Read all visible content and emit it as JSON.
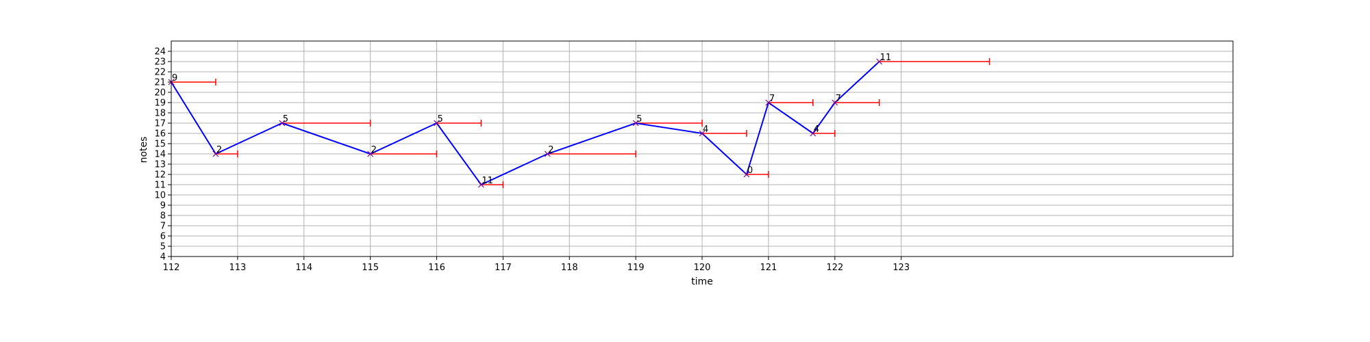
{
  "chart_data": {
    "type": "line",
    "title": "",
    "xlabel": "time",
    "ylabel": "notes",
    "xlim": [
      112,
      128
    ],
    "ylim": [
      4,
      25
    ],
    "x_ticks": [
      112,
      113,
      114,
      115,
      116,
      117,
      118,
      119,
      120,
      121,
      122,
      123
    ],
    "y_ticks": [
      4,
      5,
      6,
      7,
      8,
      9,
      10,
      11,
      12,
      13,
      14,
      15,
      16,
      17,
      18,
      19,
      20,
      21,
      22,
      23,
      24
    ],
    "grid": true,
    "colors": {
      "line": "#0000ff",
      "marker": "#800080",
      "duration": "#ff0000",
      "grid": "#b0b0b0"
    },
    "points": [
      {
        "x": 112.0,
        "y": 21,
        "label": "9",
        "end": 112.67
      },
      {
        "x": 112.67,
        "y": 14,
        "label": "2",
        "end": 113.0
      },
      {
        "x": 113.67,
        "y": 17,
        "label": "5",
        "end": 115.0
      },
      {
        "x": 115.0,
        "y": 14,
        "label": "2",
        "end": 116.0
      },
      {
        "x": 116.0,
        "y": 17,
        "label": "5",
        "end": 116.67
      },
      {
        "x": 116.67,
        "y": 11,
        "label": "11",
        "end": 117.0
      },
      {
        "x": 117.67,
        "y": 14,
        "label": "2",
        "end": 119.0
      },
      {
        "x": 119.0,
        "y": 17,
        "label": "5",
        "end": 120.0
      },
      {
        "x": 120.0,
        "y": 16,
        "label": "4",
        "end": 120.67
      },
      {
        "x": 120.67,
        "y": 12,
        "label": "0",
        "end": 121.0
      },
      {
        "x": 121.0,
        "y": 19,
        "label": "7",
        "end": 121.67
      },
      {
        "x": 121.67,
        "y": 16,
        "label": "4",
        "end": 122.0
      },
      {
        "x": 122.0,
        "y": 19,
        "label": "7",
        "end": 122.67
      },
      {
        "x": 122.67,
        "y": 23,
        "label": "11",
        "end": 124.33
      }
    ]
  }
}
